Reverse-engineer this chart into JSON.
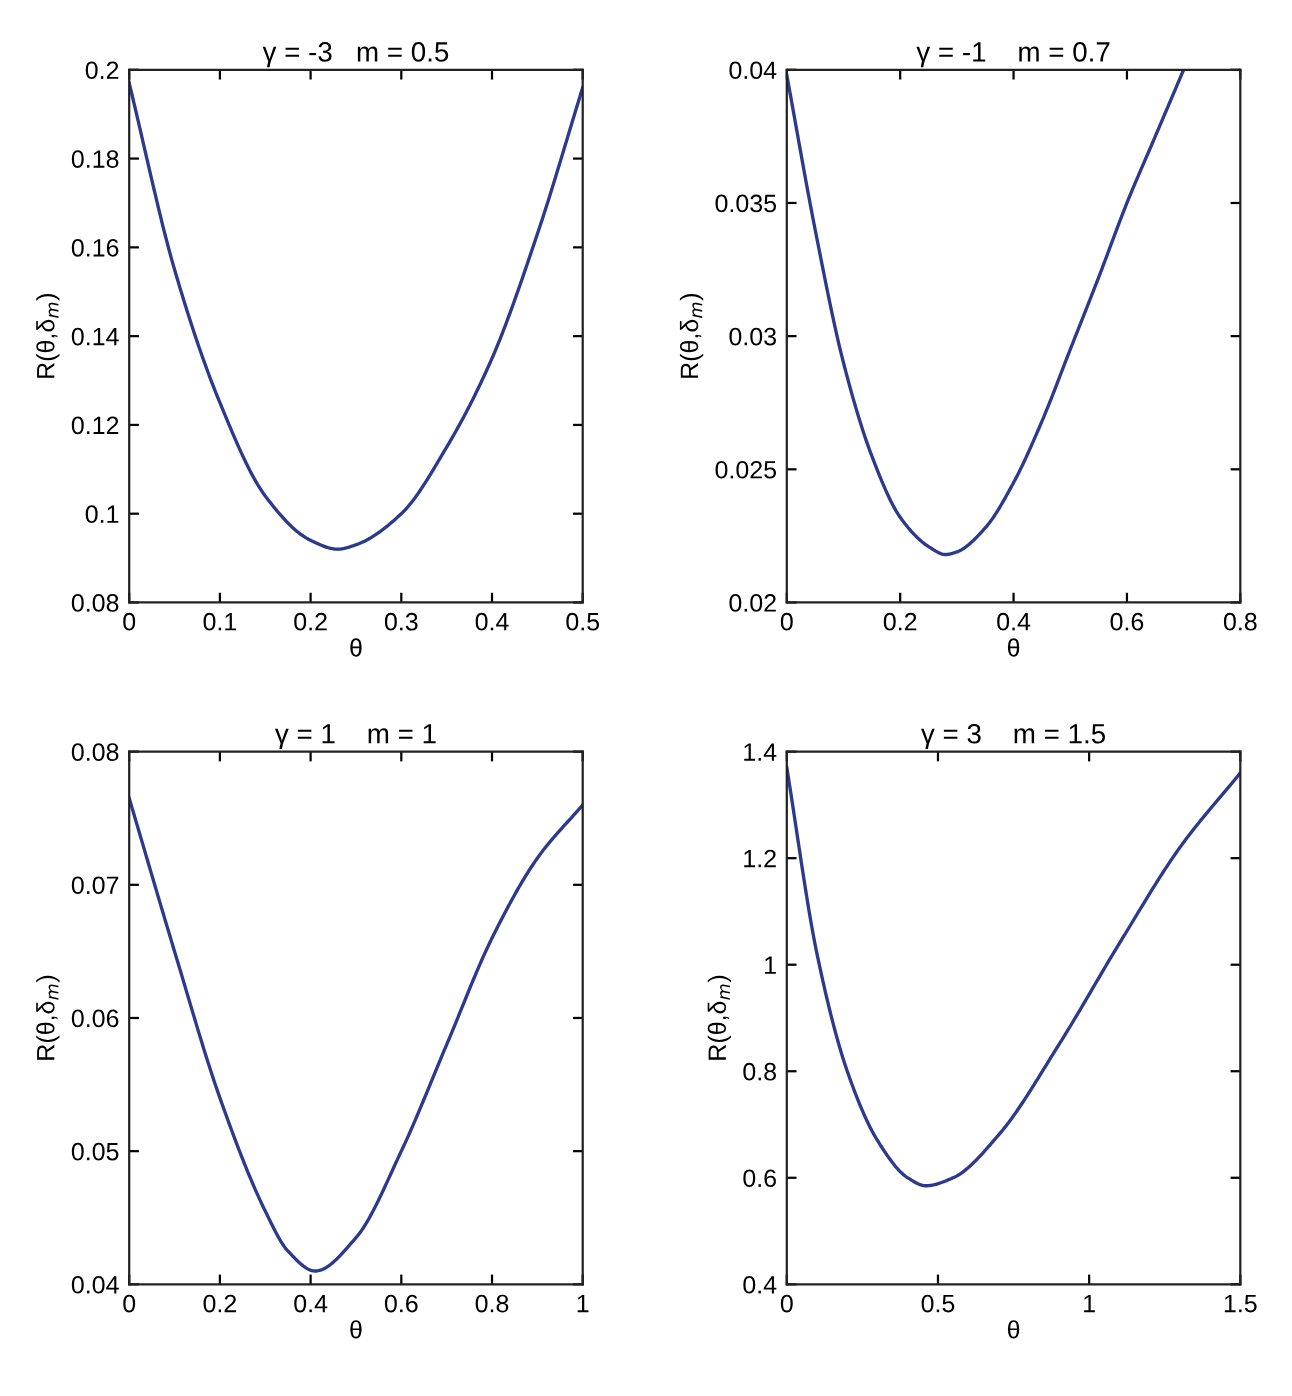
{
  "chart_data": [
    {
      "type": "line",
      "title": "γ = -3   m = 0.5",
      "xlabel": "θ",
      "ylabel": "R(θ,δ$_{m}$)",
      "x": [
        0,
        0.05,
        0.1,
        0.15,
        0.2,
        0.23,
        0.25,
        0.3,
        0.35,
        0.4,
        0.45,
        0.5
      ],
      "series": [
        {
          "color": "#2b3a8c",
          "values": [
            0.197,
            0.155,
            0.125,
            0.104,
            0.094,
            0.092,
            0.093,
            0.1,
            0.115,
            0.135,
            0.163,
            0.196
          ]
        }
      ],
      "xlim": [
        0,
        0.5
      ],
      "ylim": [
        0.08,
        0.2
      ],
      "xticks": [
        0,
        0.1,
        0.2,
        0.3,
        0.4,
        0.5
      ],
      "yticks": [
        0.08,
        0.1,
        0.12,
        0.14,
        0.16,
        0.18,
        0.2
      ],
      "grid": false
    },
    {
      "type": "line",
      "title": "γ = -1    m = 0.7",
      "xlabel": "θ",
      "ylabel": "R(θ,δ$_{m}$)",
      "x": [
        0,
        0.05,
        0.1,
        0.15,
        0.2,
        0.25,
        0.28,
        0.3,
        0.35,
        0.4,
        0.45,
        0.5,
        0.55,
        0.6,
        0.65,
        0.7
      ],
      "series": [
        {
          "color": "#2b3a8c",
          "values": [
            0.0398,
            0.034,
            0.029,
            0.0255,
            0.0232,
            0.0221,
            0.0218,
            0.0219,
            0.0228,
            0.0245,
            0.0268,
            0.0295,
            0.0322,
            0.035,
            0.0375,
            0.04
          ]
        }
      ],
      "xlim": [
        0,
        0.8
      ],
      "ylim": [
        0.02,
        0.04
      ],
      "xticks": [
        0,
        0.2,
        0.4,
        0.6,
        0.8
      ],
      "yticks": [
        0.02,
        0.025,
        0.03,
        0.035,
        0.04
      ],
      "grid": false
    },
    {
      "type": "line",
      "title": "γ = 1    m = 1",
      "xlabel": "θ",
      "ylabel": "R(θ,δ$_{m}$)",
      "x": [
        0,
        0.1,
        0.2,
        0.3,
        0.35,
        0.41,
        0.5,
        0.6,
        0.7,
        0.8,
        0.9,
        1
      ],
      "series": [
        {
          "color": "#2b3a8c",
          "values": [
            0.0765,
            0.065,
            0.054,
            0.0455,
            0.0425,
            0.041,
            0.0435,
            0.05,
            0.058,
            0.066,
            0.072,
            0.076
          ]
        }
      ],
      "xlim": [
        0,
        1
      ],
      "ylim": [
        0.04,
        0.08
      ],
      "xticks": [
        0,
        0.2,
        0.4,
        0.6,
        0.8,
        1
      ],
      "yticks": [
        0.04,
        0.05,
        0.06,
        0.07,
        0.08
      ],
      "grid": false
    },
    {
      "type": "line",
      "title": "γ = 3    m = 1.5",
      "xlabel": "θ",
      "ylabel": "R(θ,δ$_{m}$)",
      "x": [
        0,
        0.1,
        0.2,
        0.3,
        0.4,
        0.46,
        0.55,
        0.7,
        0.9,
        1.1,
        1.3,
        1.5
      ],
      "series": [
        {
          "color": "#2b3a8c",
          "values": [
            1.37,
            1.02,
            0.8,
            0.67,
            0.6,
            0.585,
            0.6,
            0.68,
            0.85,
            1.04,
            1.22,
            1.36
          ]
        }
      ],
      "xlim": [
        0,
        1.5
      ],
      "ylim": [
        0.4,
        1.4
      ],
      "xticks": [
        0,
        0.5,
        1,
        1.5
      ],
      "yticks": [
        0.4,
        0.6,
        0.8,
        1,
        1.2,
        1.4
      ],
      "grid": false
    }
  ]
}
